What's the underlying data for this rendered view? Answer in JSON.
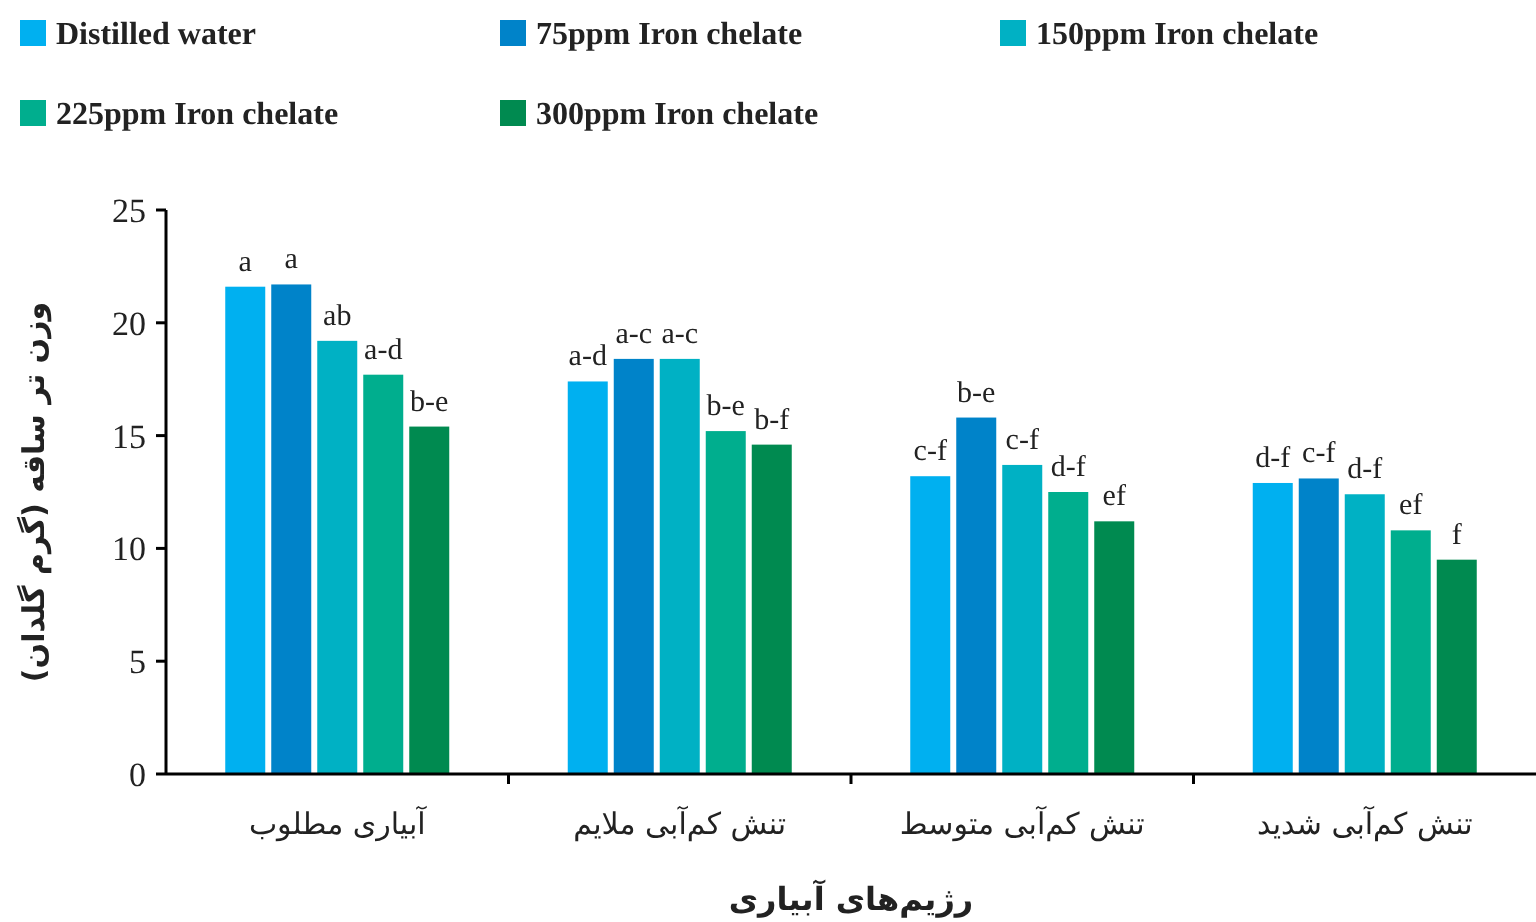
{
  "chart_data": {
    "type": "bar",
    "xlabel": "رژیم‌های آبیاری",
    "ylabel": "وزن تر ساقه (گرم گلدان)",
    "categories": [
      "آبیاری مطلوب",
      "تنش کم‌آبی ملایم",
      "تنش کم‌آبی متوسط",
      "تنش کم‌آبی شدید"
    ],
    "ylim": [
      0,
      25
    ],
    "yticks": [
      0,
      5,
      10,
      15,
      20,
      25
    ],
    "grid": false,
    "legend": "top",
    "series": [
      {
        "name": "Distilled water",
        "color": "#00b0f0",
        "values": [
          21.6,
          17.4,
          13.2,
          12.9
        ],
        "value_labels": [
          "a",
          "a-d",
          "c-f",
          "d-f"
        ]
      },
      {
        "name": "75ppm Iron chelate",
        "color": "#0083c9",
        "values": [
          21.7,
          18.4,
          15.8,
          13.1
        ],
        "value_labels": [
          "a",
          "a-c",
          "b-e",
          "c-f"
        ]
      },
      {
        "name": "150ppm Iron chelate",
        "color": "#00b1c4",
        "values": [
          19.2,
          18.4,
          13.7,
          12.4
        ],
        "value_labels": [
          "ab",
          "a-c",
          "c-f",
          "d-f"
        ]
      },
      {
        "name": "225ppm Iron chelate",
        "color": "#00ae8e",
        "values": [
          17.7,
          15.2,
          12.5,
          10.8
        ],
        "value_labels": [
          "a-d",
          "b-e",
          "d-f",
          "ef"
        ]
      },
      {
        "name": "300ppm Iron chelate",
        "color": "#008a50",
        "values": [
          15.4,
          14.6,
          11.2,
          9.5
        ],
        "value_labels": [
          "b-e",
          "b-f",
          "ef",
          "f"
        ]
      }
    ]
  }
}
